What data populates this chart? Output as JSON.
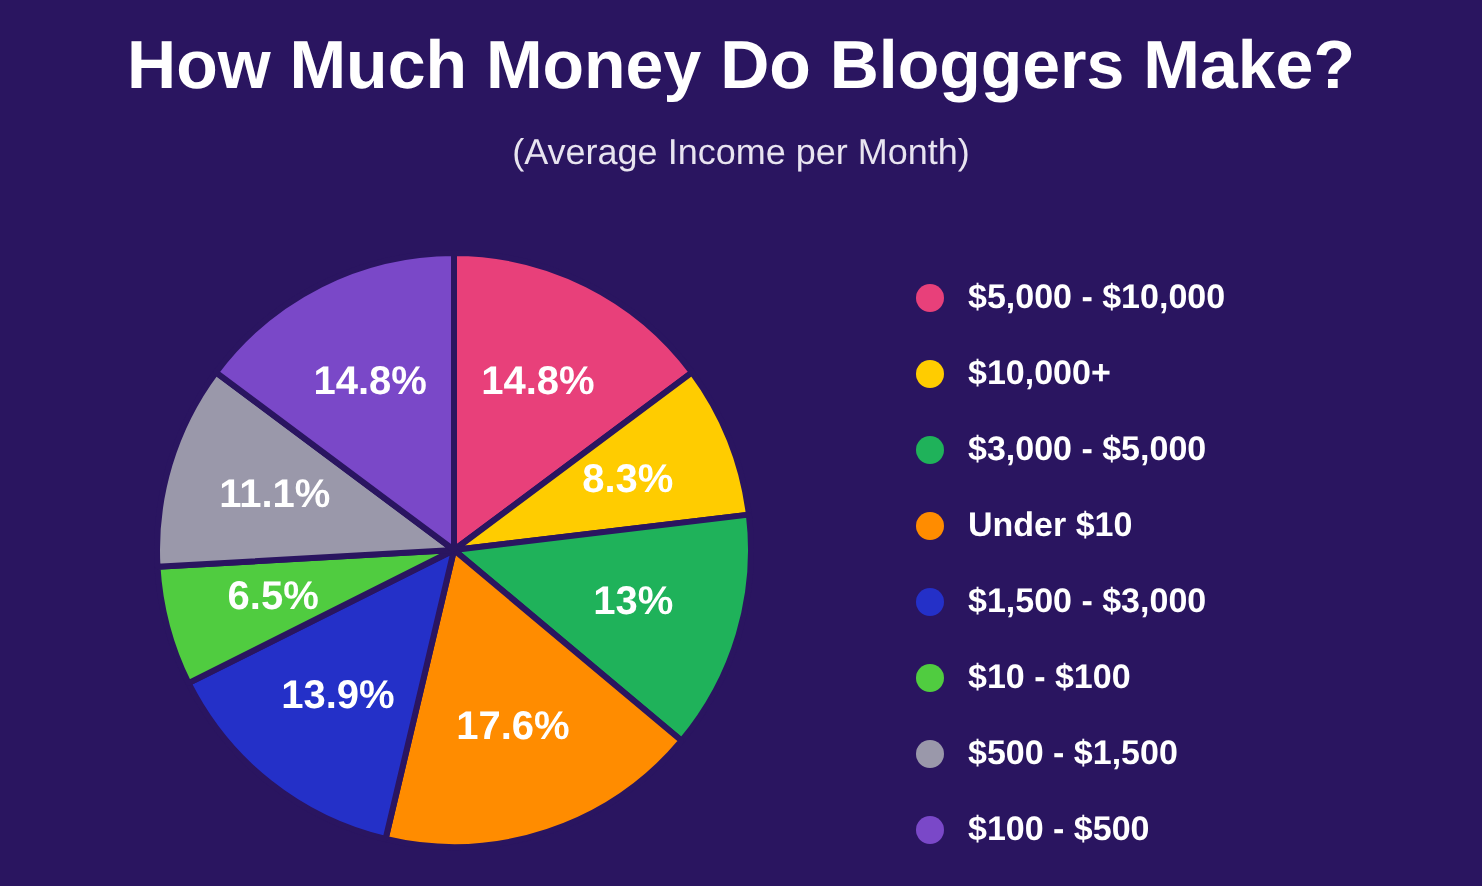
{
  "chart_data": {
    "type": "pie",
    "title": "How Much Money Do Bloggers Make?",
    "subtitle": "(Average Income per Month)",
    "categories": [
      "$5,000 - $10,000",
      "$10,000+",
      "$3,000 - $5,000",
      "Under $10",
      "$1,500 - $3,000",
      "$10 - $100",
      "$500 - $1,500",
      "$100 - $500"
    ],
    "values": [
      14.8,
      8.3,
      13,
      17.6,
      13.9,
      6.5,
      11.1,
      14.8
    ],
    "value_labels": [
      "14.8%",
      "8.3%",
      "13%",
      "17.6%",
      "13.9%",
      "6.5%",
      "11.1%",
      "14.8%"
    ],
    "colors": [
      "#e8407a",
      "#ffcc00",
      "#1fb25a",
      "#ff8c00",
      "#2430c8",
      "#50cc40",
      "#9a98aa",
      "#7a48c8"
    ],
    "legend": "right"
  }
}
